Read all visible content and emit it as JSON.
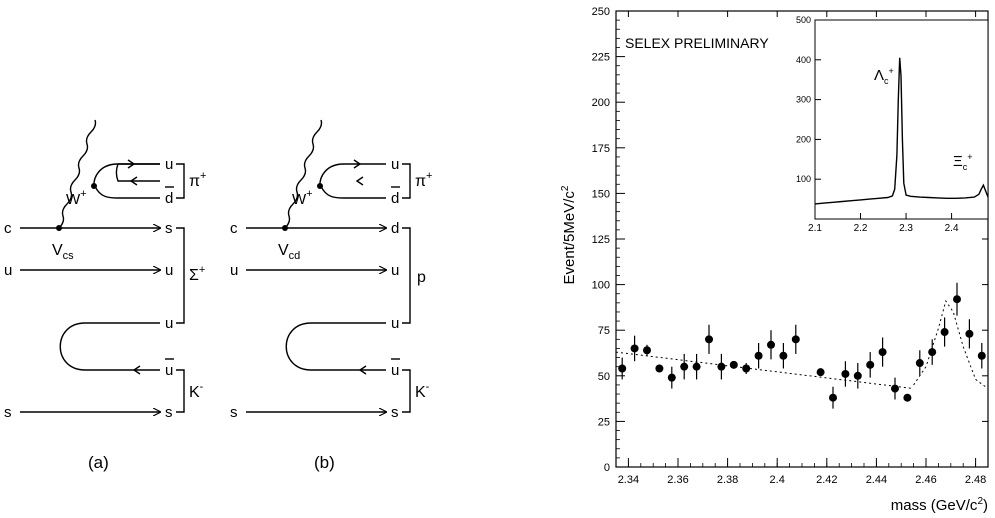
{
  "diagrams": [
    {
      "caption": "(a)",
      "vertex_label": "V",
      "vertex_sub": "cs",
      "boson": "W",
      "boson_sup": "+",
      "left_quarks": [
        "c",
        "u",
        "s"
      ],
      "right_quarks": [
        "u",
        "d",
        "s",
        "u",
        "u",
        "u",
        "s"
      ],
      "right_bars": [
        false,
        true,
        false,
        false,
        false,
        true,
        false
      ],
      "hadrons": [
        {
          "symbol": "π",
          "sup": "+"
        },
        {
          "symbol": "Σ",
          "sup": "+"
        },
        {
          "symbol": "K",
          "sup": "-"
        }
      ]
    },
    {
      "caption": "(b)",
      "vertex_label": "V",
      "vertex_sub": "cd",
      "boson": "W",
      "boson_sup": "+",
      "left_quarks": [
        "c",
        "u",
        "s"
      ],
      "right_quarks": [
        "u",
        "d",
        "d",
        "u",
        "u",
        "u",
        "s"
      ],
      "right_bars": [
        false,
        true,
        false,
        false,
        false,
        true,
        false
      ],
      "hadrons": [
        {
          "symbol": "π",
          "sup": "+"
        },
        {
          "symbol": "p",
          "sup": ""
        },
        {
          "symbol": "K",
          "sup": "-"
        }
      ]
    }
  ],
  "chart_data": {
    "type": "scatter",
    "annotation": "SELEX PRELIMINARY",
    "ylabel": "Event/5MeV/c",
    "ylabel_sup": "2",
    "xlabel": "mass (GeV/c",
    "xlabel_sup": "2",
    "xlabel_close": ")",
    "xlim": [
      2.335,
      2.485
    ],
    "ylim": [
      0,
      250
    ],
    "x_ticks": [
      2.34,
      2.36,
      2.38,
      2.4,
      2.42,
      2.44,
      2.46,
      2.48
    ],
    "x_tick_labels": [
      "2.34",
      "2.36",
      "2.38",
      "2.4",
      "2.42",
      "2.44",
      "2.46",
      "2.48"
    ],
    "y_ticks": [
      0,
      25,
      50,
      75,
      100,
      125,
      150,
      175,
      200,
      225,
      250
    ],
    "y_tick_labels": [
      "0",
      "25",
      "50",
      "75",
      "100",
      "125",
      "150",
      "175",
      "200",
      "225",
      "250"
    ],
    "points": [
      {
        "x": 2.3375,
        "y": 54,
        "err": 6
      },
      {
        "x": 2.3425,
        "y": 65,
        "err": 7
      },
      {
        "x": 2.3475,
        "y": 64,
        "err": 3
      },
      {
        "x": 2.3525,
        "y": 54,
        "err": 2
      },
      {
        "x": 2.3575,
        "y": 49,
        "err": 6
      },
      {
        "x": 2.3625,
        "y": 55,
        "err": 7
      },
      {
        "x": 2.3675,
        "y": 55,
        "err": 7
      },
      {
        "x": 2.3725,
        "y": 70,
        "err": 8
      },
      {
        "x": 2.3775,
        "y": 55,
        "err": 7
      },
      {
        "x": 2.3825,
        "y": 56,
        "err": 2
      },
      {
        "x": 2.3875,
        "y": 54,
        "err": 3
      },
      {
        "x": 2.3925,
        "y": 61,
        "err": 7
      },
      {
        "x": 2.3975,
        "y": 67,
        "err": 8
      },
      {
        "x": 2.4025,
        "y": 61,
        "err": 7
      },
      {
        "x": 2.4075,
        "y": 70,
        "err": 8
      },
      {
        "x": 2.4175,
        "y": 52,
        "err": 2
      },
      {
        "x": 2.4225,
        "y": 38,
        "err": 6
      },
      {
        "x": 2.4275,
        "y": 51,
        "err": 7
      },
      {
        "x": 2.4325,
        "y": 50,
        "err": 7
      },
      {
        "x": 2.4375,
        "y": 56,
        "err": 7
      },
      {
        "x": 2.4425,
        "y": 63,
        "err": 8
      },
      {
        "x": 2.4475,
        "y": 43,
        "err": 6
      },
      {
        "x": 2.4525,
        "y": 38,
        "err": 2
      },
      {
        "x": 2.4575,
        "y": 57,
        "err": 7
      },
      {
        "x": 2.4625,
        "y": 63,
        "err": 7
      },
      {
        "x": 2.4675,
        "y": 74,
        "err": 8
      },
      {
        "x": 2.4725,
        "y": 92,
        "err": 9
      },
      {
        "x": 2.4775,
        "y": 73,
        "err": 8
      },
      {
        "x": 2.4825,
        "y": 61,
        "err": 7
      },
      {
        "x": 2.4875,
        "y": 40,
        "err": 6
      }
    ],
    "background_fit": [
      {
        "x": 2.335,
        "y": 63
      },
      {
        "x": 2.455,
        "y": 43
      }
    ],
    "peak_fit": [
      {
        "x": 2.455,
        "y": 45
      },
      {
        "x": 2.46,
        "y": 55
      },
      {
        "x": 2.465,
        "y": 76
      },
      {
        "x": 2.468,
        "y": 91
      },
      {
        "x": 2.471,
        "y": 85
      },
      {
        "x": 2.475,
        "y": 66
      },
      {
        "x": 2.48,
        "y": 48
      },
      {
        "x": 2.485,
        "y": 43
      }
    ],
    "inset": {
      "type": "line",
      "xlim": [
        2.1,
        2.48
      ],
      "ylim": [
        0,
        500
      ],
      "x_ticks": [
        2.1,
        2.2,
        2.3,
        2.4
      ],
      "x_tick_labels": [
        "2.1",
        "2.2",
        "2.3",
        "2.4"
      ],
      "y_ticks": [
        100,
        200,
        300,
        400,
        500
      ],
      "y_tick_labels": [
        "100",
        "200",
        "300",
        "400",
        "500"
      ],
      "peak1": {
        "symbol": "Λ",
        "sub": "c",
        "sup": "+"
      },
      "peak2": {
        "symbol": "Ξ",
        "sub": "c",
        "sup": "+"
      },
      "x": [
        2.1,
        2.12,
        2.14,
        2.16,
        2.18,
        2.2,
        2.22,
        2.24,
        2.26,
        2.27,
        2.275,
        2.28,
        2.283,
        2.286,
        2.289,
        2.292,
        2.295,
        2.3,
        2.31,
        2.33,
        2.35,
        2.37,
        2.39,
        2.41,
        2.43,
        2.45,
        2.46,
        2.465,
        2.47,
        2.475,
        2.48
      ],
      "y": [
        38,
        40,
        42,
        44,
        46,
        48,
        50,
        52,
        54,
        58,
        75,
        160,
        300,
        405,
        360,
        200,
        90,
        60,
        57,
        55,
        54,
        53,
        52,
        52,
        53,
        55,
        62,
        75,
        85,
        70,
        55
      ]
    }
  }
}
